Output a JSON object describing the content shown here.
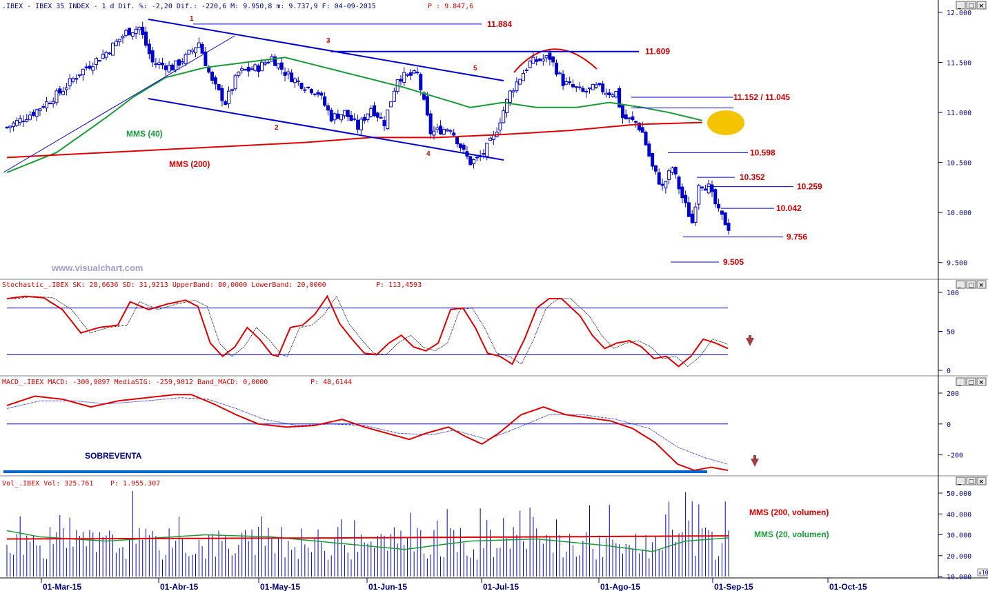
{
  "header": {
    "main": ".IBEX - IBEX 35 INDEX -  1 d Dif. %: -2,20 Dif.: -220,6 M: 9.950,8 m: 9.737,9 F: 04-09-2015",
    "main_p": "P : 9.847,6",
    "stoch": "Stochastic_.IBEX SK: 28,6636 SD: 31,9213 UpperBand: 80,0000 LowerBand: 20,0000",
    "stoch_p": "P: 113,4593",
    "macd": "MACD_.IBEX MACD: -300,9897 MediaSIG: -259,9012 Band_MACD: 0,0000",
    "macd_p": "P: 48,6144",
    "vol": "Vol_.IBEX Vol: 325.761",
    "vol_p": "P: 1.955.307"
  },
  "window_buttons": [
    "_",
    "□",
    "×"
  ],
  "watermark": "www.visualchart.com",
  "colors": {
    "candle": "#0000cc",
    "mm40": "#1a9a3a",
    "mm200": "#dd0000",
    "channel": "#0000cc",
    "axis_text": "#000080",
    "arrow": "#a04040",
    "highlight": "#f5c400"
  },
  "chart_data": [
    {
      "type": "candlestick",
      "title": ".IBEX - IBEX 35 INDEX",
      "y_ticks": [
        "12.000",
        "11.500",
        "11.000",
        "10.500",
        "10.000",
        "9.500"
      ],
      "ylim": [
        9450,
        12000
      ],
      "x_ticks": [
        "01-Mar-15",
        "01-Abr-15",
        "01-May-15",
        "01-Jun-15",
        "01-Jul-15",
        "01-Ago-15",
        "01-Sep-15",
        "01-Oct-15"
      ],
      "series": [
        {
          "name": "MMS (40)",
          "color": "#1a9a3a"
        },
        {
          "name": "MMS (200)",
          "color": "#dd0000"
        }
      ],
      "levels": [
        {
          "label": "11.884",
          "value": 11884
        },
        {
          "label": "11.609",
          "value": 11609
        },
        {
          "label": "11.152 / 11.045",
          "value": 11152
        },
        {
          "label": "10.598",
          "value": 10598
        },
        {
          "label": "10.352",
          "value": 10352
        },
        {
          "label": "10.259",
          "value": 10259
        },
        {
          "label": "10.042",
          "value": 10042
        },
        {
          "label": "9.756",
          "value": 9756
        },
        {
          "label": "9.505",
          "value": 9505
        }
      ],
      "wave_labels": [
        "1",
        "2",
        "3",
        "4",
        "5"
      ],
      "close_waypoints": [
        [
          0,
          10850
        ],
        [
          8,
          11000
        ],
        [
          16,
          11200
        ],
        [
          22,
          11400
        ],
        [
          30,
          11600
        ],
        [
          36,
          11800
        ],
        [
          40,
          11850
        ],
        [
          44,
          11500
        ],
        [
          50,
          11450
        ],
        [
          54,
          11550
        ],
        [
          58,
          11700
        ],
        [
          62,
          11300
        ],
        [
          66,
          11100
        ],
        [
          70,
          11400
        ],
        [
          76,
          11450
        ],
        [
          80,
          11550
        ],
        [
          84,
          11400
        ],
        [
          88,
          11300
        ],
        [
          94,
          11200
        ],
        [
          98,
          10950
        ],
        [
          102,
          11000
        ],
        [
          106,
          10850
        ],
        [
          110,
          11050
        ],
        [
          114,
          10900
        ],
        [
          118,
          11350
        ],
        [
          124,
          11380
        ],
        [
          128,
          10800
        ],
        [
          134,
          10850
        ],
        [
          138,
          10600
        ],
        [
          140,
          10500
        ],
        [
          143,
          10550
        ],
        [
          147,
          10750
        ],
        [
          152,
          11200
        ],
        [
          158,
          11500
        ],
        [
          164,
          11550
        ],
        [
          168,
          11300
        ],
        [
          174,
          11200
        ],
        [
          178,
          11250
        ],
        [
          182,
          11200
        ],
        [
          184,
          11200
        ],
        [
          186,
          10950
        ],
        [
          190,
          10900
        ],
        [
          192,
          10800
        ],
        [
          195,
          10450
        ],
        [
          198,
          10250
        ],
        [
          201,
          10450
        ],
        [
          204,
          10150
        ],
        [
          207,
          9900
        ],
        [
          209,
          10300
        ],
        [
          212,
          10250
        ],
        [
          215,
          10000
        ],
        [
          218,
          9850
        ]
      ],
      "mm40": [
        [
          0,
          10400
        ],
        [
          15,
          10600
        ],
        [
          30,
          10950
        ],
        [
          38,
          11150
        ],
        [
          48,
          11350
        ],
        [
          60,
          11450
        ],
        [
          72,
          11500
        ],
        [
          84,
          11550
        ],
        [
          96,
          11450
        ],
        [
          108,
          11350
        ],
        [
          120,
          11250
        ],
        [
          130,
          11150
        ],
        [
          140,
          11050
        ],
        [
          150,
          11100
        ],
        [
          160,
          11050
        ],
        [
          172,
          11050
        ],
        [
          182,
          11100
        ],
        [
          192,
          11050
        ],
        [
          200,
          11000
        ],
        [
          210,
          10920
        ]
      ],
      "mm200": [
        [
          0,
          10550
        ],
        [
          30,
          10600
        ],
        [
          60,
          10650
        ],
        [
          90,
          10700
        ],
        [
          110,
          10750
        ],
        [
          130,
          10750
        ],
        [
          150,
          10780
        ],
        [
          170,
          10820
        ],
        [
          190,
          10880
        ],
        [
          210,
          10900
        ]
      ]
    },
    {
      "type": "line",
      "title": "Stochastic_.IBEX",
      "y_ticks": [
        "100",
        "50",
        "0"
      ],
      "ylim": [
        0,
        100
      ],
      "bands": [
        80,
        20
      ],
      "series": [
        {
          "name": "SK",
          "color": "#dd0000"
        },
        {
          "name": "SD",
          "color": "#000000"
        }
      ],
      "sk_waypoints": [
        [
          0,
          92
        ],
        [
          6,
          95
        ],
        [
          12,
          93
        ],
        [
          18,
          78
        ],
        [
          24,
          48
        ],
        [
          30,
          55
        ],
        [
          36,
          58
        ],
        [
          40,
          88
        ],
        [
          46,
          78
        ],
        [
          52,
          85
        ],
        [
          58,
          90
        ],
        [
          62,
          82
        ],
        [
          66,
          35
        ],
        [
          70,
          18
        ],
        [
          74,
          30
        ],
        [
          78,
          55
        ],
        [
          82,
          40
        ],
        [
          86,
          20
        ],
        [
          88,
          18
        ],
        [
          92,
          55
        ],
        [
          96,
          58
        ],
        [
          100,
          72
        ],
        [
          104,
          95
        ],
        [
          108,
          60
        ],
        [
          112,
          40
        ],
        [
          116,
          22
        ],
        [
          120,
          20
        ],
        [
          124,
          35
        ],
        [
          128,
          45
        ],
        [
          132,
          30
        ],
        [
          136,
          25
        ],
        [
          140,
          35
        ],
        [
          144,
          78
        ],
        [
          148,
          80
        ],
        [
          152,
          55
        ],
        [
          156,
          22
        ],
        [
          160,
          18
        ],
        [
          164,
          8
        ],
        [
          168,
          40
        ],
        [
          172,
          80
        ],
        [
          176,
          92
        ],
        [
          180,
          92
        ],
        [
          186,
          70
        ],
        [
          190,
          45
        ],
        [
          194,
          28
        ],
        [
          198,
          35
        ],
        [
          202,
          38
        ],
        [
          206,
          30
        ],
        [
          210,
          15
        ],
        [
          214,
          18
        ],
        [
          218,
          5
        ],
        [
          222,
          18
        ],
        [
          226,
          40
        ],
        [
          230,
          35
        ],
        [
          234,
          28
        ]
      ]
    },
    {
      "type": "line",
      "title": "MACD_.IBEX",
      "y_ticks": [
        "200",
        "0",
        "-200"
      ],
      "ylim": [
        -320,
        210
      ],
      "series": [
        {
          "name": "MACD",
          "color": "#dd0000"
        },
        {
          "name": "MediaSIG",
          "color": "#0000cc"
        }
      ],
      "annotation": "SOBREVENTA",
      "macd_waypoints": [
        [
          0,
          120
        ],
        [
          10,
          180
        ],
        [
          20,
          160
        ],
        [
          30,
          110
        ],
        [
          40,
          150
        ],
        [
          50,
          170
        ],
        [
          60,
          190
        ],
        [
          66,
          190
        ],
        [
          74,
          130
        ],
        [
          82,
          60
        ],
        [
          90,
          0
        ],
        [
          100,
          -20
        ],
        [
          110,
          -10
        ],
        [
          120,
          30
        ],
        [
          128,
          -20
        ],
        [
          136,
          -60
        ],
        [
          144,
          -100
        ],
        [
          150,
          -60
        ],
        [
          158,
          -20
        ],
        [
          164,
          -80
        ],
        [
          170,
          -130
        ],
        [
          176,
          -60
        ],
        [
          184,
          60
        ],
        [
          192,
          110
        ],
        [
          200,
          60
        ],
        [
          208,
          40
        ],
        [
          216,
          20
        ],
        [
          224,
          -30
        ],
        [
          232,
          -120
        ],
        [
          240,
          -260
        ],
        [
          246,
          -300
        ],
        [
          252,
          -280
        ],
        [
          258,
          -300
        ]
      ],
      "sig_waypoints": [
        [
          0,
          100
        ],
        [
          12,
          150
        ],
        [
          24,
          150
        ],
        [
          36,
          130
        ],
        [
          50,
          150
        ],
        [
          62,
          170
        ],
        [
          72,
          160
        ],
        [
          82,
          100
        ],
        [
          92,
          30
        ],
        [
          104,
          -10
        ],
        [
          116,
          0
        ],
        [
          128,
          -10
        ],
        [
          140,
          -60
        ],
        [
          152,
          -70
        ],
        [
          160,
          -40
        ],
        [
          172,
          -100
        ],
        [
          182,
          -30
        ],
        [
          194,
          60
        ],
        [
          206,
          60
        ],
        [
          218,
          30
        ],
        [
          230,
          -30
        ],
        [
          240,
          -150
        ],
        [
          250,
          -220
        ],
        [
          258,
          -260
        ]
      ]
    },
    {
      "type": "bar",
      "title": "Vol_.IBEX",
      "y_ticks": [
        "50.000",
        "40.000",
        "30.000",
        "20.000",
        "10.000"
      ],
      "ylim": [
        10000,
        51000
      ],
      "series": [
        {
          "name": "MMS (200, volumen)",
          "color": "#dd0000"
        },
        {
          "name": "MMS (20, volumen)",
          "color": "#1a9a3a"
        }
      ],
      "scale_marker": "x10"
    }
  ]
}
